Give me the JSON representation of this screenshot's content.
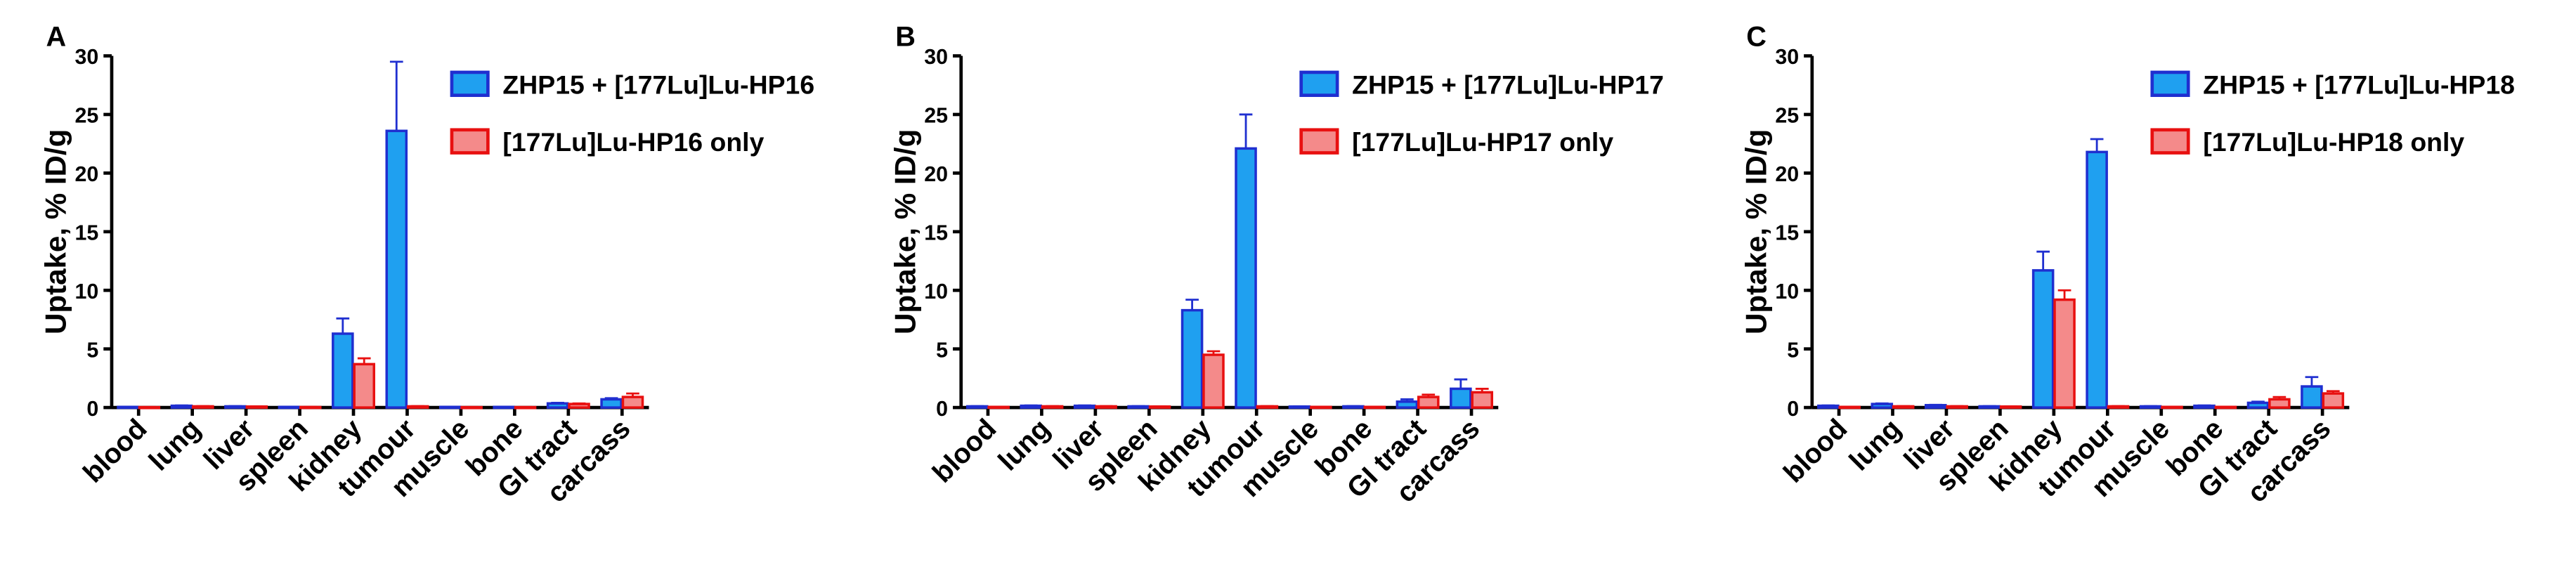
{
  "chart_data": [
    {
      "type": "bar",
      "label": "A",
      "ylabel": "Uptake, % ID/g",
      "categories": [
        "blood",
        "lung",
        "liver",
        "spleen",
        "kidney",
        "tumour",
        "muscle",
        "bone",
        "GI tract",
        "carcass"
      ],
      "series": [
        {
          "name": "ZHP15 + [177Lu]Lu-HP16",
          "color": "#1fa0f0",
          "edge": "#1f2fd0",
          "values": [
            0.05,
            0.15,
            0.1,
            0.05,
            6.3,
            23.6,
            0.05,
            0.05,
            0.35,
            0.7
          ],
          "errors": [
            0.02,
            0.03,
            0.02,
            0.02,
            1.3,
            5.9,
            0.02,
            0.02,
            0.05,
            0.1
          ]
        },
        {
          "name": "[177Lu]Lu-HP16 only",
          "color": "#f48a8a",
          "edge": "#e81010",
          "values": [
            0.03,
            0.1,
            0.08,
            0.04,
            3.7,
            0.1,
            0.03,
            0.03,
            0.3,
            0.9
          ],
          "errors": [
            0.02,
            0.02,
            0.02,
            0.02,
            0.5,
            0.02,
            0.02,
            0.02,
            0.05,
            0.3
          ]
        }
      ],
      "ylim": [
        0,
        30
      ],
      "yticks": [
        0,
        5,
        10,
        15,
        20,
        25,
        30
      ]
    },
    {
      "type": "bar",
      "label": "B",
      "ylabel": "Uptake, % ID/g",
      "categories": [
        "blood",
        "lung",
        "liver",
        "spleen",
        "kidney",
        "tumour",
        "muscle",
        "bone",
        "GI tract",
        "carcass"
      ],
      "series": [
        {
          "name": "ZHP15 + [177Lu]Lu-HP17",
          "color": "#1fa0f0",
          "edge": "#1f2fd0",
          "values": [
            0.1,
            0.15,
            0.15,
            0.1,
            8.3,
            22.1,
            0.08,
            0.1,
            0.5,
            1.6
          ],
          "errors": [
            0.02,
            0.03,
            0.03,
            0.02,
            0.9,
            2.9,
            0.02,
            0.02,
            0.2,
            0.8
          ]
        },
        {
          "name": "[177Lu]Lu-HP17 only",
          "color": "#f48a8a",
          "edge": "#e81010",
          "values": [
            0.05,
            0.1,
            0.1,
            0.08,
            4.5,
            0.1,
            0.05,
            0.05,
            0.9,
            1.3
          ],
          "errors": [
            0.02,
            0.02,
            0.02,
            0.02,
            0.3,
            0.02,
            0.02,
            0.02,
            0.2,
            0.3
          ]
        }
      ],
      "ylim": [
        0,
        30
      ],
      "yticks": [
        0,
        5,
        10,
        15,
        20,
        25,
        30
      ]
    },
    {
      "type": "bar",
      "label": "C",
      "ylabel": "Uptake, % ID/g",
      "categories": [
        "blood",
        "lung",
        "liver",
        "spleen",
        "kidney",
        "tumour",
        "muscle",
        "bone",
        "GI tract",
        "carcass"
      ],
      "series": [
        {
          "name": "ZHP15 + [177Lu]Lu-HP18",
          "color": "#1fa0f0",
          "edge": "#1f2fd0",
          "values": [
            0.15,
            0.3,
            0.2,
            0.1,
            11.7,
            21.8,
            0.1,
            0.15,
            0.4,
            1.8
          ],
          "errors": [
            0.03,
            0.05,
            0.03,
            0.02,
            1.6,
            1.1,
            0.02,
            0.03,
            0.1,
            0.8
          ]
        },
        {
          "name": "[177Lu]Lu-HP18 only",
          "color": "#f48a8a",
          "edge": "#e81010",
          "values": [
            0.05,
            0.1,
            0.1,
            0.08,
            9.2,
            0.1,
            0.05,
            0.05,
            0.7,
            1.2
          ],
          "errors": [
            0.02,
            0.02,
            0.02,
            0.02,
            0.8,
            0.02,
            0.02,
            0.02,
            0.2,
            0.2
          ]
        }
      ],
      "ylim": [
        0,
        30
      ],
      "yticks": [
        0,
        5,
        10,
        15,
        20,
        25,
        30
      ]
    }
  ]
}
